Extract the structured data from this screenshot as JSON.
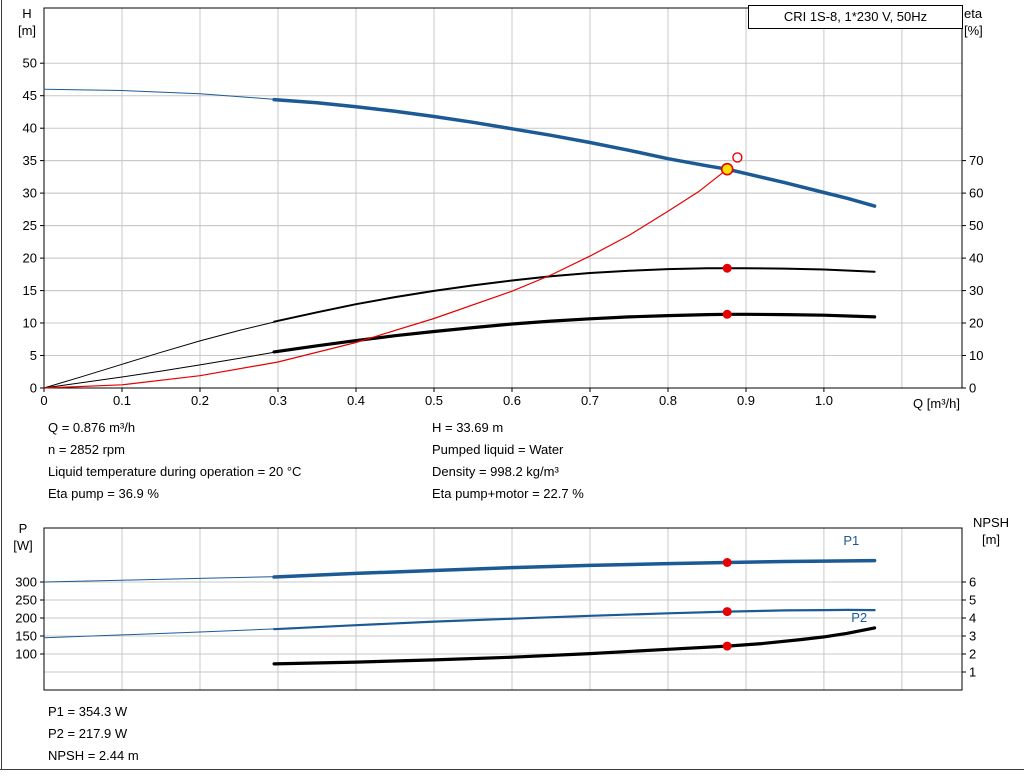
{
  "colors": {
    "grid": "#c8c8c8",
    "frame": "#000000",
    "text": "#000000",
    "curve_blue": "#1c5a96",
    "curve_black": "#000000",
    "curve_red": "#e60000",
    "duty_yellow": "#ffe000",
    "panel_border": "#3c3c3c"
  },
  "title_box": {
    "label": "CRI 1S-8, 1*230 V, 50Hz"
  },
  "annotations_top": {
    "left": [
      "Q = 0.876 m³/h",
      "n = 2852 rpm",
      "Liquid temperature during operation = 20 °C",
      "Eta pump = 36.9 %"
    ],
    "right": [
      "H = 33.69 m",
      "Pumped liquid = Water",
      "Density = 998.2 kg/m³",
      "Eta pump+motor = 22.7 %"
    ]
  },
  "annotations_bottom": [
    "P1 = 354.3 W",
    "P2 = 217.9 W",
    "NPSH = 2.44 m"
  ],
  "chart_data": [
    {
      "id": "hq",
      "type": "line",
      "title": "CRI 1S-8, 1*230 V, 50Hz",
      "x": {
        "label": "Q [m³/h]",
        "min": 0,
        "max": 1.177,
        "grid_step": 0.1,
        "ticks": [
          0,
          0.1,
          0.2,
          0.3,
          0.4,
          0.5,
          0.6,
          0.7,
          0.8,
          0.9,
          1.0
        ],
        "tick_labels": [
          "0",
          "0.1",
          "0.2",
          "0.3",
          "0.4",
          "0.5",
          "0.6",
          "0.7",
          "0.8",
          "0.9",
          "1.0"
        ]
      },
      "y_left": {
        "label": "H",
        "unit": "[m]",
        "min": 0,
        "max": 58.5,
        "ticks": [
          0,
          5,
          10,
          15,
          20,
          25,
          30,
          35,
          40,
          45,
          50
        ]
      },
      "y_right": {
        "label": "eta",
        "unit": "[%]",
        "min": 0,
        "max": 117,
        "ticks": [
          0,
          10,
          20,
          30,
          40,
          50,
          60,
          70
        ]
      },
      "series": [
        {
          "name": "h-curve-extension",
          "axis": "left",
          "color": "#1c5a96",
          "width": 1,
          "points": [
            [
              0,
              46.0
            ],
            [
              0.1,
              45.8
            ],
            [
              0.2,
              45.3
            ],
            [
              0.3,
              44.4
            ]
          ]
        },
        {
          "name": "h-curve",
          "axis": "left",
          "color": "#1c5a96",
          "width": 3.5,
          "points": [
            [
              0.295,
              44.4
            ],
            [
              0.35,
              43.9
            ],
            [
              0.4,
              43.3
            ],
            [
              0.45,
              42.6
            ],
            [
              0.5,
              41.8
            ],
            [
              0.55,
              40.9
            ],
            [
              0.6,
              39.9
            ],
            [
              0.65,
              38.9
            ],
            [
              0.7,
              37.8
            ],
            [
              0.75,
              36.6
            ],
            [
              0.8,
              35.3
            ],
            [
              0.85,
              34.2
            ],
            [
              0.876,
              33.69
            ],
            [
              0.9,
              33.0
            ],
            [
              0.95,
              31.6
            ],
            [
              1.0,
              30.1
            ],
            [
              1.03,
              29.2
            ],
            [
              1.065,
              28.0
            ]
          ]
        },
        {
          "name": "eta-pump-extension",
          "axis": "right",
          "color": "#000000",
          "width": 1,
          "points": [
            [
              0,
              0
            ],
            [
              0.05,
              3.6
            ],
            [
              0.1,
              7.3
            ],
            [
              0.15,
              11.0
            ],
            [
              0.2,
              14.5
            ],
            [
              0.25,
              17.7
            ],
            [
              0.3,
              20.6
            ]
          ]
        },
        {
          "name": "eta-pump-curve",
          "axis": "right",
          "color": "#000000",
          "width": 2,
          "points": [
            [
              0.295,
              20.4
            ],
            [
              0.35,
              23.3
            ],
            [
              0.4,
              25.8
            ],
            [
              0.45,
              28.0
            ],
            [
              0.5,
              29.9
            ],
            [
              0.55,
              31.6
            ],
            [
              0.6,
              33.1
            ],
            [
              0.65,
              34.4
            ],
            [
              0.7,
              35.4
            ],
            [
              0.75,
              36.1
            ],
            [
              0.8,
              36.6
            ],
            [
              0.85,
              36.85
            ],
            [
              0.876,
              36.9
            ],
            [
              0.9,
              36.9
            ],
            [
              0.95,
              36.75
            ],
            [
              1.0,
              36.5
            ],
            [
              1.065,
              35.8
            ]
          ]
        },
        {
          "name": "eta-pump-motor-extension",
          "axis": "right",
          "color": "#000000",
          "width": 1,
          "points": [
            [
              0,
              0
            ],
            [
              0.05,
              1.7
            ],
            [
              0.1,
              3.4
            ],
            [
              0.15,
              5.2
            ],
            [
              0.2,
              7.1
            ],
            [
              0.25,
              9.1
            ],
            [
              0.3,
              11.2
            ]
          ]
        },
        {
          "name": "eta-pump-motor-curve",
          "axis": "right",
          "color": "#000000",
          "width": 3.2,
          "points": [
            [
              0.295,
              11.1
            ],
            [
              0.35,
              13.0
            ],
            [
              0.4,
              14.6
            ],
            [
              0.45,
              16.1
            ],
            [
              0.5,
              17.4
            ],
            [
              0.55,
              18.6
            ],
            [
              0.6,
              19.7
            ],
            [
              0.65,
              20.6
            ],
            [
              0.7,
              21.3
            ],
            [
              0.75,
              21.9
            ],
            [
              0.8,
              22.3
            ],
            [
              0.85,
              22.6
            ],
            [
              0.876,
              22.7
            ],
            [
              0.9,
              22.7
            ],
            [
              0.95,
              22.6
            ],
            [
              1.0,
              22.4
            ],
            [
              1.065,
              21.9
            ]
          ]
        },
        {
          "name": "resulting-duty-curve",
          "axis": "left",
          "color": "#e60000",
          "width": 1.2,
          "points": [
            [
              0,
              0
            ],
            [
              0.1,
              0.5
            ],
            [
              0.2,
              1.9
            ],
            [
              0.3,
              4.0
            ],
            [
              0.4,
              7.0
            ],
            [
              0.5,
              10.7
            ],
            [
              0.6,
              14.9
            ],
            [
              0.65,
              17.4
            ],
            [
              0.7,
              20.3
            ],
            [
              0.75,
              23.5
            ],
            [
              0.8,
              27.2
            ],
            [
              0.84,
              30.3
            ],
            [
              0.876,
              33.69
            ]
          ]
        }
      ],
      "markers": [
        {
          "name": "rated-point",
          "axis": "left",
          "x": 0.889,
          "y": 35.5,
          "r": 4.5,
          "fill": "#ffffff",
          "stroke": "#e60000",
          "sw": 1.4
        },
        {
          "name": "eta-pump-point",
          "axis": "right",
          "x": 0.876,
          "y": 36.9,
          "r": 4.5,
          "fill": "#e60000"
        },
        {
          "name": "eta-pump-motor-point",
          "axis": "right",
          "x": 0.876,
          "y": 22.7,
          "r": 4.5,
          "fill": "#e60000"
        },
        {
          "name": "duty-point",
          "axis": "left",
          "x": 0.876,
          "y": 33.69,
          "r": 5.5,
          "fill": "#ffe000",
          "stroke": "#e60000",
          "sw": 1.6
        }
      ],
      "curve_labels": []
    },
    {
      "id": "power",
      "type": "line",
      "title": "",
      "x": {
        "label": "",
        "min": 0,
        "max": 1.177,
        "grid_step": 0.1,
        "ticks": [],
        "tick_labels": []
      },
      "y_left": {
        "label": "P",
        "unit": "[W]",
        "min": 0,
        "max": 450,
        "ticks": [
          100,
          150,
          200,
          250,
          300
        ]
      },
      "y_right": {
        "label": "NPSH",
        "unit": "[m]",
        "min": 0,
        "max": 9,
        "ticks": [
          1,
          2,
          3,
          4,
          5,
          6
        ]
      },
      "series": [
        {
          "name": "p1-curve-extension",
          "axis": "left",
          "color": "#1c5a96",
          "width": 1,
          "points": [
            [
              0,
              300
            ],
            [
              0.1,
              305
            ],
            [
              0.2,
              310
            ],
            [
              0.3,
              315
            ]
          ]
        },
        {
          "name": "p1-curve",
          "axis": "left",
          "color": "#1c5a96",
          "width": 3.5,
          "points": [
            [
              0.295,
              314
            ],
            [
              0.4,
              324
            ],
            [
              0.5,
              332
            ],
            [
              0.6,
              340
            ],
            [
              0.7,
              346
            ],
            [
              0.8,
              351
            ],
            [
              0.876,
              354.3
            ],
            [
              0.95,
              357
            ],
            [
              1.0,
              358
            ],
            [
              1.065,
              359.5
            ]
          ]
        },
        {
          "name": "p2-curve-extension",
          "axis": "left",
          "color": "#1c5a96",
          "width": 1,
          "points": [
            [
              0,
              145
            ],
            [
              0.1,
              153
            ],
            [
              0.2,
              161
            ],
            [
              0.3,
              170
            ]
          ]
        },
        {
          "name": "p2-curve",
          "axis": "left",
          "color": "#1c5a96",
          "width": 2.2,
          "points": [
            [
              0.295,
              169
            ],
            [
              0.4,
              180
            ],
            [
              0.5,
              190
            ],
            [
              0.6,
              198
            ],
            [
              0.7,
              206
            ],
            [
              0.8,
              213
            ],
            [
              0.876,
              217.9
            ],
            [
              0.95,
              221
            ],
            [
              1.0,
              222
            ],
            [
              1.03,
              222.5
            ],
            [
              1.065,
              222
            ]
          ]
        },
        {
          "name": "npsh-curve",
          "axis": "right",
          "color": "#000000",
          "width": 3.2,
          "points": [
            [
              0.295,
              1.45
            ],
            [
              0.4,
              1.55
            ],
            [
              0.5,
              1.67
            ],
            [
              0.6,
              1.82
            ],
            [
              0.7,
              2.02
            ],
            [
              0.8,
              2.26
            ],
            [
              0.876,
              2.44
            ],
            [
              0.92,
              2.58
            ],
            [
              0.97,
              2.8
            ],
            [
              1.0,
              2.95
            ],
            [
              1.03,
              3.15
            ],
            [
              1.065,
              3.45
            ]
          ]
        }
      ],
      "markers": [
        {
          "name": "p1-point",
          "axis": "left",
          "x": 0.876,
          "y": 354.3,
          "r": 4.5,
          "fill": "#e60000"
        },
        {
          "name": "p2-point",
          "axis": "left",
          "x": 0.876,
          "y": 217.9,
          "r": 4.5,
          "fill": "#e60000"
        },
        {
          "name": "npsh-point",
          "axis": "right",
          "x": 0.876,
          "y": 2.44,
          "r": 4.5,
          "fill": "#e60000"
        }
      ],
      "curve_labels": [
        {
          "name": "p1-curve-label",
          "text": "P1",
          "axis": "left",
          "x": 1.025,
          "y": 403
        },
        {
          "name": "p2-curve-label",
          "text": "P2",
          "axis": "left",
          "x": 1.035,
          "y": 189
        }
      ]
    }
  ]
}
